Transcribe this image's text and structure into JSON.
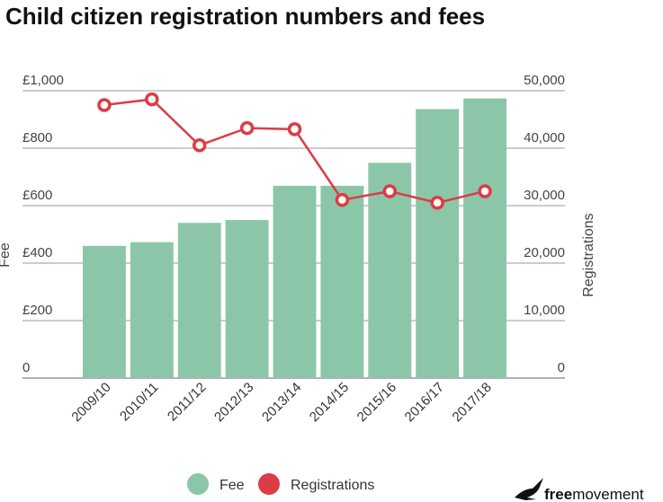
{
  "chart_data": {
    "type": "bar",
    "title": "Child citizen registration numbers and fees",
    "categories": [
      "2009/10",
      "2010/11",
      "2011/12",
      "2012/13",
      "2013/14",
      "2014/15",
      "2015/16",
      "2016/17",
      "2017/18"
    ],
    "series": [
      {
        "name": "Fee",
        "type": "bar",
        "axis": "left",
        "color": "#8cc6a8",
        "values": [
          460,
          473,
          540,
          550,
          669,
          669,
          749,
          936,
          973
        ]
      },
      {
        "name": "Registrations",
        "type": "line",
        "axis": "right",
        "color": "#dc3c45",
        "values": [
          47500,
          48500,
          40500,
          43500,
          43300,
          31000,
          32500,
          30500,
          32500
        ]
      }
    ],
    "ylabel": "Fee",
    "y2label": "Registrations",
    "ylim": [
      0,
      1000
    ],
    "y2lim": [
      0,
      50000
    ],
    "yticks": [
      "0",
      "£200",
      "£400",
      "£600",
      "£800",
      "£1,000"
    ],
    "y2ticks": [
      "0",
      "10,000",
      "20,000",
      "30,000",
      "40,000",
      "50,000"
    ],
    "grid": true,
    "legend_position": "bottom"
  },
  "brand": {
    "bold": "free",
    "regular": "movement",
    "logo_icon": "bird-icon"
  }
}
